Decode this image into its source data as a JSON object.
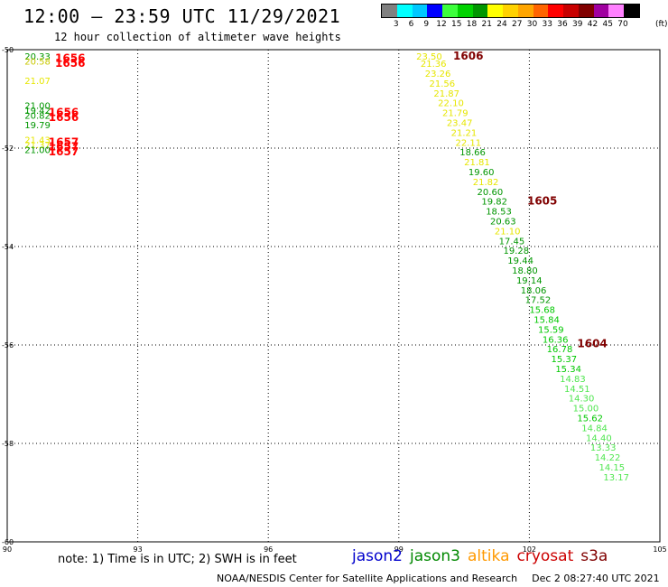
{
  "header": {
    "title": "12:00 – 23:59 UTC 11/29/2021",
    "subtitle": "12 hour collection of altimeter wave heights"
  },
  "colorbar": {
    "labels": [
      "3",
      "6",
      "9",
      "12",
      "15",
      "18",
      "21",
      "24",
      "27",
      "30",
      "33",
      "36",
      "39",
      "42",
      "45",
      "70"
    ],
    "unit": "(ft)",
    "colors": [
      "#808080",
      "#00ffff",
      "#00c8ff",
      "#0000ff",
      "#3cff3c",
      "#00d200",
      "#009600",
      "#ffff00",
      "#ffd200",
      "#ffa500",
      "#ff6400",
      "#ff0000",
      "#c80000",
      "#800000",
      "#a000a0",
      "#ff80ff",
      "#000000"
    ]
  },
  "map": {
    "x_ticks": [
      "90",
      "93",
      "96",
      "99",
      "102",
      "105"
    ],
    "y_ticks": [
      "-50",
      "-52",
      "-54",
      "-56",
      "-58",
      "-60"
    ]
  },
  "chart_data": {
    "type": "scatter",
    "xlim": [
      90,
      105
    ],
    "ylim": [
      -60,
      -50
    ],
    "grid": true,
    "points": [
      {
        "x": 90.4,
        "y": -50.2,
        "label": "20.33",
        "color": "#009600"
      },
      {
        "x": 90.4,
        "y": -50.3,
        "label": "20.58",
        "color": "#c8c800"
      },
      {
        "x": 90.4,
        "y": -50.7,
        "label": "21.07",
        "color": "#e6e600"
      },
      {
        "x": 90.4,
        "y": -51.2,
        "label": "21.00",
        "color": "#009600"
      },
      {
        "x": 90.4,
        "y": -51.3,
        "label": "19.42",
        "color": "#009600"
      },
      {
        "x": 90.4,
        "y": -51.4,
        "label": "20.82",
        "color": "#009600"
      },
      {
        "x": 90.4,
        "y": -51.6,
        "label": "19.79",
        "color": "#009600"
      },
      {
        "x": 90.4,
        "y": -51.9,
        "label": "21.43",
        "color": "#e6e600"
      },
      {
        "x": 90.4,
        "y": -52.0,
        "label": "21.37",
        "color": "#e6e600"
      },
      {
        "x": 90.4,
        "y": -52.1,
        "label": "21.00",
        "color": "#009600"
      },
      {
        "x": 99.4,
        "y": -50.2,
        "label": "23.50",
        "color": "#e6e600"
      },
      {
        "x": 99.5,
        "y": -50.35,
        "label": "21.36",
        "color": "#e6e600"
      },
      {
        "x": 99.6,
        "y": -50.55,
        "label": "23.26",
        "color": "#e6e600"
      },
      {
        "x": 99.7,
        "y": -50.75,
        "label": "21.56",
        "color": "#e6e600"
      },
      {
        "x": 99.8,
        "y": -50.95,
        "label": "21.87",
        "color": "#e6e600"
      },
      {
        "x": 99.9,
        "y": -51.15,
        "label": "22.10",
        "color": "#e6e600"
      },
      {
        "x": 100.0,
        "y": -51.35,
        "label": "21.79",
        "color": "#e6e600"
      },
      {
        "x": 100.1,
        "y": -51.55,
        "label": "23.47",
        "color": "#e6e600"
      },
      {
        "x": 100.2,
        "y": -51.75,
        "label": "21.21",
        "color": "#e6e600"
      },
      {
        "x": 100.3,
        "y": -51.95,
        "label": "22.11",
        "color": "#e6e600"
      },
      {
        "x": 100.4,
        "y": -52.15,
        "label": "18.66",
        "color": "#009600"
      },
      {
        "x": 100.5,
        "y": -52.35,
        "label": "21.81",
        "color": "#e6e600"
      },
      {
        "x": 100.6,
        "y": -52.55,
        "label": "19.60",
        "color": "#009600"
      },
      {
        "x": 100.7,
        "y": -52.75,
        "label": "21.82",
        "color": "#e6e600"
      },
      {
        "x": 100.8,
        "y": -52.95,
        "label": "20.60",
        "color": "#009600"
      },
      {
        "x": 100.9,
        "y": -53.15,
        "label": "19.82",
        "color": "#009600"
      },
      {
        "x": 101.0,
        "y": -53.35,
        "label": "18.53",
        "color": "#009600"
      },
      {
        "x": 101.1,
        "y": -53.55,
        "label": "20.63",
        "color": "#009600"
      },
      {
        "x": 101.2,
        "y": -53.75,
        "label": "21.10",
        "color": "#e6e600"
      },
      {
        "x": 101.3,
        "y": -53.95,
        "label": "17.45",
        "color": "#009600"
      },
      {
        "x": 101.4,
        "y": -54.15,
        "label": "19.28",
        "color": "#009600"
      },
      {
        "x": 101.5,
        "y": -54.35,
        "label": "19.44",
        "color": "#009600"
      },
      {
        "x": 101.6,
        "y": -54.55,
        "label": "18.80",
        "color": "#009600"
      },
      {
        "x": 101.7,
        "y": -54.75,
        "label": "19.14",
        "color": "#009600"
      },
      {
        "x": 101.8,
        "y": -54.95,
        "label": "18.06",
        "color": "#009600"
      },
      {
        "x": 101.9,
        "y": -55.15,
        "label": "17.52",
        "color": "#009600"
      },
      {
        "x": 102.0,
        "y": -55.35,
        "label": "15.68",
        "color": "#00c800"
      },
      {
        "x": 102.1,
        "y": -55.55,
        "label": "15.84",
        "color": "#00c800"
      },
      {
        "x": 102.2,
        "y": -55.75,
        "label": "15.59",
        "color": "#00c800"
      },
      {
        "x": 102.3,
        "y": -55.95,
        "label": "16.36",
        "color": "#00c800"
      },
      {
        "x": 102.4,
        "y": -56.15,
        "label": "16.78",
        "color": "#00c800"
      },
      {
        "x": 102.5,
        "y": -56.35,
        "label": "15.37",
        "color": "#00c800"
      },
      {
        "x": 102.6,
        "y": -56.55,
        "label": "15.34",
        "color": "#00c800"
      },
      {
        "x": 102.7,
        "y": -56.75,
        "label": "14.83",
        "color": "#50e650"
      },
      {
        "x": 102.8,
        "y": -56.95,
        "label": "14.51",
        "color": "#50e650"
      },
      {
        "x": 102.9,
        "y": -57.15,
        "label": "14.30",
        "color": "#50e650"
      },
      {
        "x": 103.0,
        "y": -57.35,
        "label": "15.00",
        "color": "#50e650"
      },
      {
        "x": 103.1,
        "y": -57.55,
        "label": "15.62",
        "color": "#00c800"
      },
      {
        "x": 103.2,
        "y": -57.75,
        "label": "14.84",
        "color": "#50e650"
      },
      {
        "x": 103.3,
        "y": -57.95,
        "label": "14.40",
        "color": "#50e650"
      },
      {
        "x": 103.4,
        "y": -58.15,
        "label": "13.33",
        "color": "#50e650"
      },
      {
        "x": 103.5,
        "y": -58.35,
        "label": "14.22",
        "color": "#50e650"
      },
      {
        "x": 103.6,
        "y": -58.55,
        "label": "14.15",
        "color": "#50e650"
      },
      {
        "x": 103.7,
        "y": -58.75,
        "label": "13.17",
        "color": "#50e650"
      }
    ],
    "time_labels": [
      {
        "x": 91.1,
        "y": -50.25,
        "label": "1656",
        "color": "#ff0000"
      },
      {
        "x": 91.1,
        "y": -50.35,
        "label": "1656",
        "color": "#ff0000"
      },
      {
        "x": 90.95,
        "y": -51.35,
        "label": "1656",
        "color": "#ff0000"
      },
      {
        "x": 90.95,
        "y": -51.45,
        "label": "1656",
        "color": "#ff0000"
      },
      {
        "x": 90.95,
        "y": -51.95,
        "label": "1657",
        "color": "#ff0000"
      },
      {
        "x": 90.95,
        "y": -52.05,
        "label": "1657",
        "color": "#ff0000"
      },
      {
        "x": 90.95,
        "y": -52.15,
        "label": "1657",
        "color": "#ff0000"
      },
      {
        "x": 100.25,
        "y": -50.2,
        "label": "1606",
        "color": "#800000"
      },
      {
        "x": 101.95,
        "y": -53.15,
        "label": "1605",
        "color": "#800000"
      },
      {
        "x": 103.1,
        "y": -56.05,
        "label": "1604",
        "color": "#800000"
      }
    ]
  },
  "footer": {
    "note": "note: 1) Time is in UTC; 2) SWH is in feet",
    "satellites": [
      {
        "name": "jason2",
        "color": "#0000cc"
      },
      {
        "name": "jason3",
        "color": "#008800"
      },
      {
        "name": "altika",
        "color": "#ff9900"
      },
      {
        "name": "cryosat",
        "color": "#cc0000"
      },
      {
        "name": "s3a",
        "color": "#800000"
      }
    ],
    "credit": "NOAA/NESDIS Center for Satellite Applications and Research",
    "timestamp": "Dec  2 08:27:40 UTC 2021"
  }
}
